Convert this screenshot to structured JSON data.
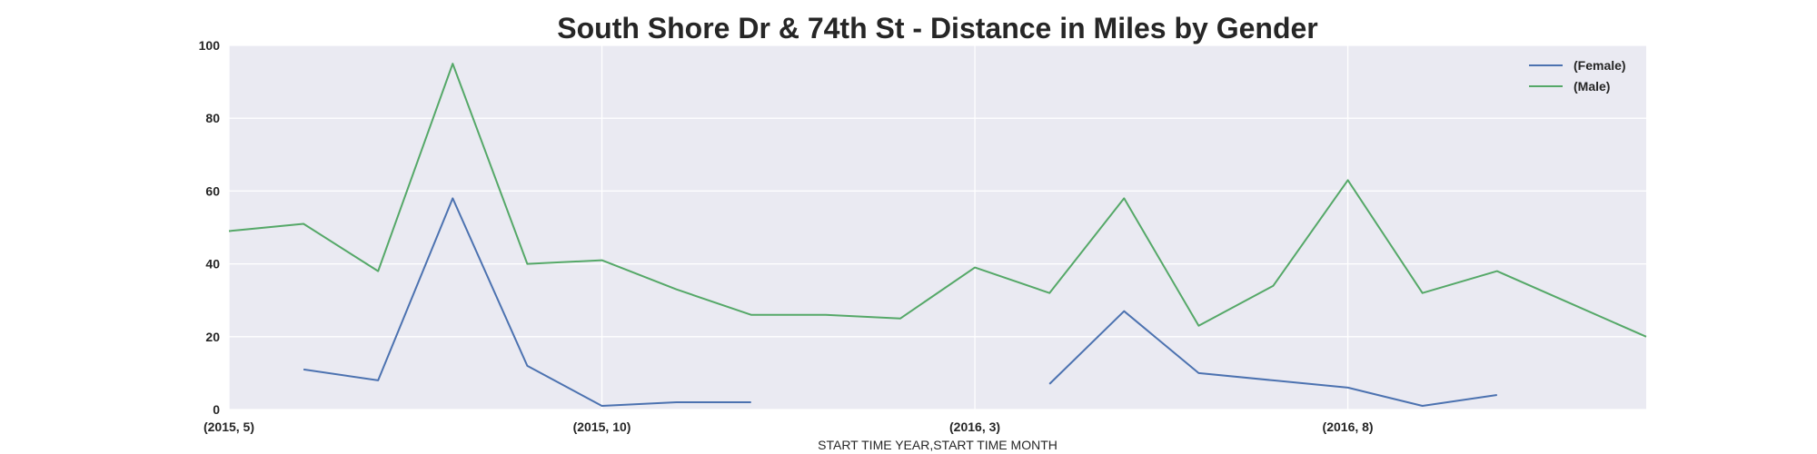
{
  "chart_data": {
    "type": "line",
    "title": "South Shore Dr & 74th St - Distance in Miles by Gender",
    "xlabel": "START TIME YEAR,START TIME MONTH",
    "ylabel": "",
    "ylim": [
      0,
      100
    ],
    "yticks": [
      0,
      20,
      40,
      60,
      80,
      100
    ],
    "categories": [
      "(2015, 5)",
      "(2015, 6)",
      "(2015, 7)",
      "(2015, 8)",
      "(2015, 9)",
      "(2015, 10)",
      "(2015, 11)",
      "(2015, 12)",
      "(2016, 1)",
      "(2016, 2)",
      "(2016, 3)",
      "(2016, 4)",
      "(2016, 5)",
      "(2016, 6)",
      "(2016, 7)",
      "(2016, 8)",
      "(2016, 9)",
      "(2016, 10)",
      "(2016, 11)",
      "(2016, 12)"
    ],
    "xtick_labels": [
      "(2015, 5)",
      "(2015, 10)",
      "(2016, 3)",
      "(2016, 8)"
    ],
    "series": [
      {
        "name": "(Female)",
        "color": "#4c72b0",
        "values": [
          null,
          11,
          8,
          58,
          12,
          1,
          2,
          2,
          null,
          null,
          null,
          7,
          27,
          10,
          8,
          6,
          1,
          4,
          null,
          null
        ]
      },
      {
        "name": "(Male)",
        "color": "#55a868",
        "values": [
          49,
          51,
          38,
          95,
          40,
          41,
          33,
          26,
          26,
          25,
          39,
          32,
          58,
          23,
          34,
          63,
          32,
          38,
          29,
          20
        ]
      }
    ],
    "grid": true,
    "legend_position": "top-right",
    "background_color": "#eaeaf2",
    "grid_color": "#ffffff"
  }
}
